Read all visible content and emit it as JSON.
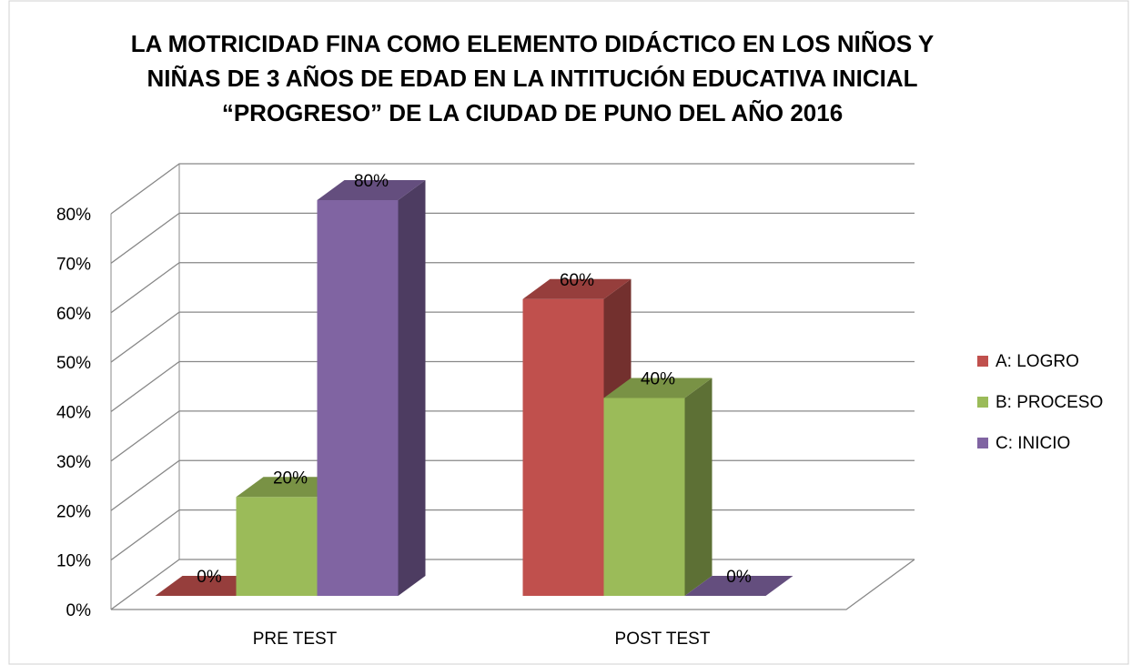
{
  "chart_data": {
    "type": "bar3d",
    "title": [
      "LA MOTRICIDAD FINA COMO ELEMENTO DIDÁCTICO EN LOS NIÑOS Y",
      "NIÑAS DE 3 AÑOS DE EDAD EN LA INTITUCIÓN EDUCATIVA INICIAL",
      "“PROGRESO” DE LA CIUDAD DE PUNO DEL AÑO 2016"
    ],
    "categories": [
      "PRE TEST",
      "POST TEST"
    ],
    "series": [
      {
        "name": "A: LOGRO",
        "color": "#c0504d",
        "values": [
          0,
          60
        ],
        "value_labels": [
          "0%",
          "60%"
        ]
      },
      {
        "name": "B: PROCESO",
        "color": "#9bbb59",
        "values": [
          20,
          40
        ],
        "value_labels": [
          "20%",
          "40%"
        ]
      },
      {
        "name": "C: INICIO",
        "color": "#8064a2",
        "values": [
          80,
          0
        ],
        "value_labels": [
          "80%",
          "0%"
        ]
      }
    ],
    "ylim": [
      0,
      80
    ],
    "yticks": [
      {
        "value": 0,
        "label": "0%"
      },
      {
        "value": 10,
        "label": "10%"
      },
      {
        "value": 20,
        "label": "20%"
      },
      {
        "value": 30,
        "label": "30%"
      },
      {
        "value": 40,
        "label": "40%"
      },
      {
        "value": 50,
        "label": "50%"
      },
      {
        "value": 60,
        "label": "60%"
      },
      {
        "value": 70,
        "label": "70%"
      },
      {
        "value": 80,
        "label": "80%"
      }
    ],
    "grid": true,
    "legend": "right"
  }
}
